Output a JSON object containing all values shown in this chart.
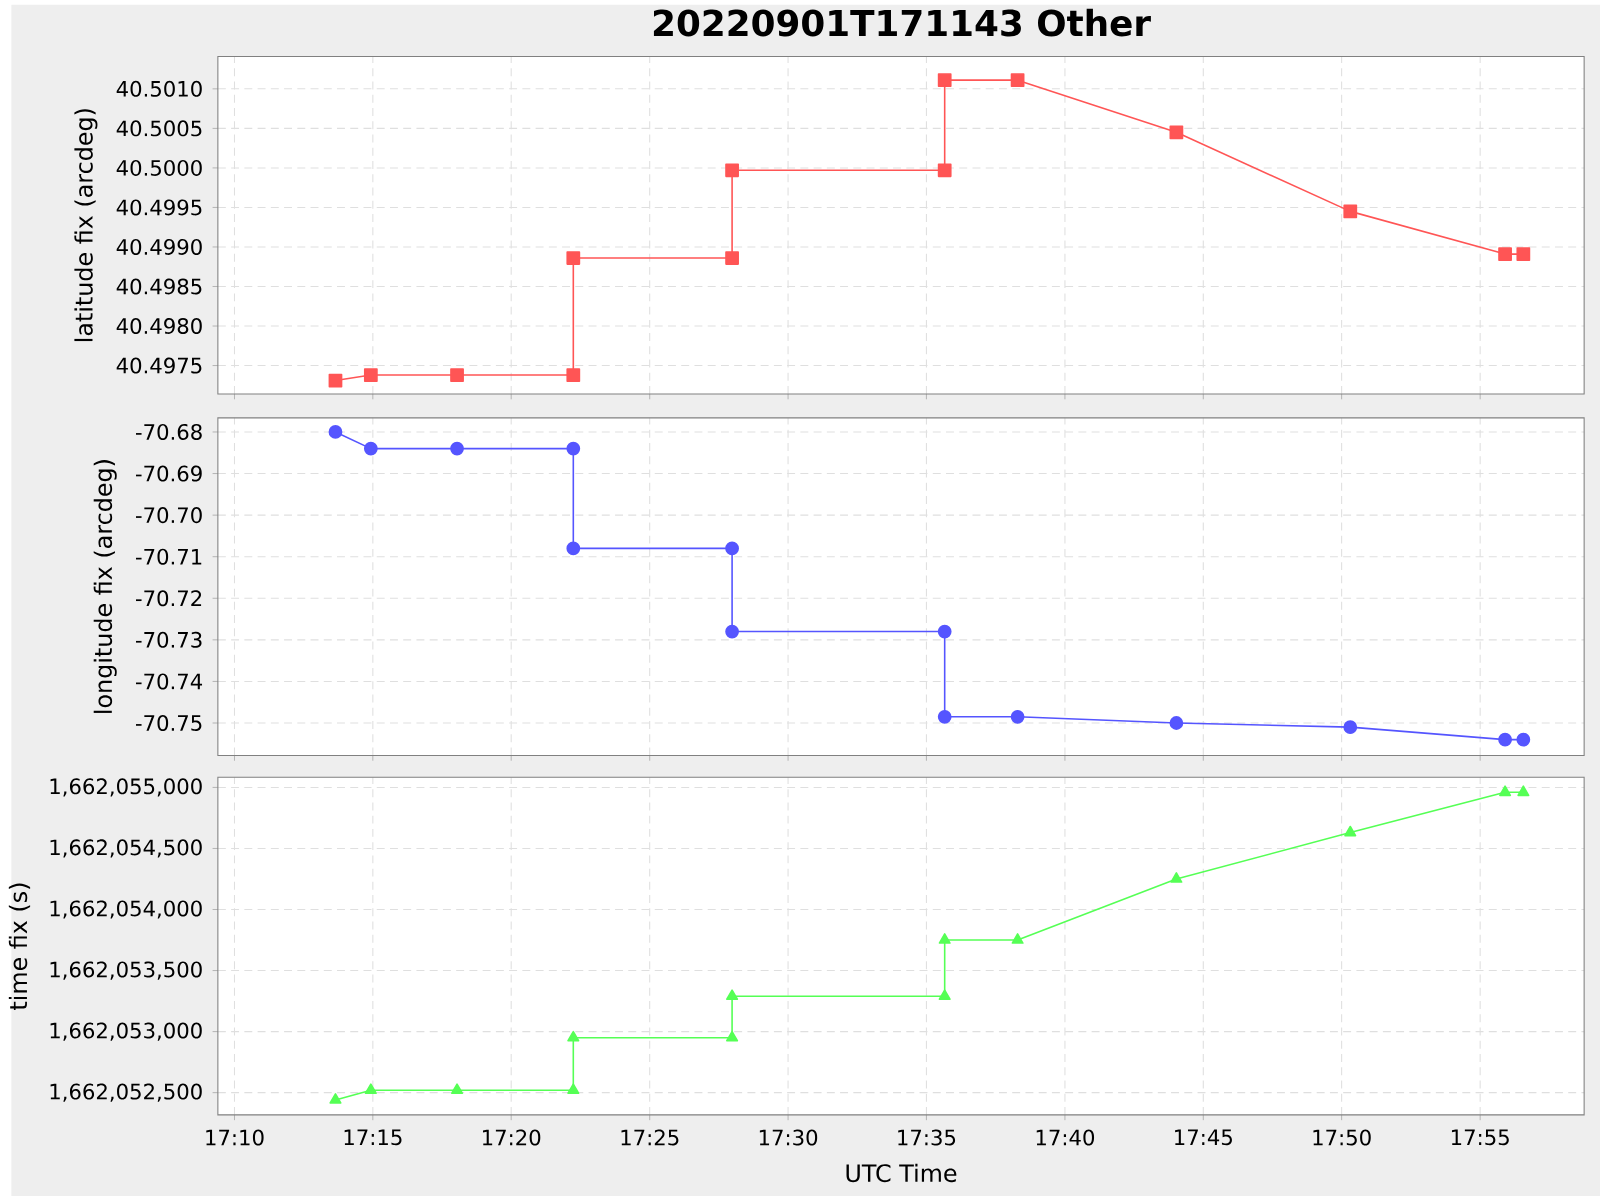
{
  "chart_data": [
    {
      "type": "line",
      "title": "20220901T171143 Other",
      "ylabel": "latitude fix (arcdeg)",
      "color": "#ff5555",
      "marker": "square",
      "line_style": "solid",
      "grid": true,
      "tick_labels": "y",
      "x": [
        17.2275,
        17.2488,
        17.3007,
        17.3707,
        17.3707,
        17.4663,
        17.4663,
        17.5943,
        17.5943,
        17.6382,
        17.7338,
        17.8385,
        17.9317,
        17.9427
      ],
      "values": [
        40.49731,
        40.49738,
        40.49738,
        40.49738,
        40.49886,
        40.49886,
        40.49997,
        40.49997,
        40.50111,
        40.50111,
        40.50045,
        40.49945,
        40.49891,
        40.49891
      ],
      "xlim": [
        17.1567,
        17.9793
      ],
      "xticks": [
        {
          "value": 17.1667,
          "label": null
        },
        {
          "value": 17.25,
          "label": null
        },
        {
          "value": 17.3333,
          "label": null
        },
        {
          "value": 17.4167,
          "label": null
        },
        {
          "value": 17.5,
          "label": null
        },
        {
          "value": 17.5833,
          "label": null
        },
        {
          "value": 17.6667,
          "label": null
        },
        {
          "value": 17.75,
          "label": null
        },
        {
          "value": 17.8333,
          "label": null
        },
        {
          "value": 17.9167,
          "label": null
        }
      ],
      "ylim": [
        40.49714,
        40.50141
      ],
      "yticks": [
        {
          "value": 40.4975,
          "label": "40.4975"
        },
        {
          "value": 40.498,
          "label": "40.4980"
        },
        {
          "value": 40.4985,
          "label": "40.4985"
        },
        {
          "value": 40.499,
          "label": "40.4990"
        },
        {
          "value": 40.4995,
          "label": "40.4995"
        },
        {
          "value": 40.5,
          "label": "40.5000"
        },
        {
          "value": 40.5005,
          "label": "40.5005"
        },
        {
          "value": 40.501,
          "label": "40.5010"
        }
      ]
    },
    {
      "type": "line",
      "ylabel": "longitude fix (arcdeg)",
      "color": "#5555ff",
      "marker": "circle",
      "line_style": "solid",
      "grid": true,
      "tick_labels": "y",
      "x": [
        17.2275,
        17.2488,
        17.3007,
        17.3707,
        17.3707,
        17.4663,
        17.4663,
        17.5943,
        17.5943,
        17.6382,
        17.7338,
        17.8385,
        17.9317,
        17.9427
      ],
      "values": [
        -70.68,
        -70.684,
        -70.684,
        -70.684,
        -70.708,
        -70.708,
        -70.728,
        -70.728,
        -70.7485,
        -70.7485,
        -70.75,
        -70.751,
        -70.754,
        -70.754
      ],
      "xlim": [
        17.1567,
        17.9793
      ],
      "xticks": [
        {
          "value": 17.1667,
          "label": null
        },
        {
          "value": 17.25,
          "label": null
        },
        {
          "value": 17.3333,
          "label": null
        },
        {
          "value": 17.4167,
          "label": null
        },
        {
          "value": 17.5,
          "label": null
        },
        {
          "value": 17.5833,
          "label": null
        },
        {
          "value": 17.6667,
          "label": null
        },
        {
          "value": 17.75,
          "label": null
        },
        {
          "value": 17.8333,
          "label": null
        },
        {
          "value": 17.9167,
          "label": null
        }
      ],
      "ylim": [
        -70.7578,
        -70.6766
      ],
      "yticks": [
        -70.75,
        -70.74,
        -70.73,
        -70.72,
        -70.71,
        {
          "value": -70.7,
          "label": "-70.70"
        },
        -70.69,
        -70.68
      ]
    },
    {
      "type": "line",
      "ylabel": "time fix (s)",
      "xlabel": "UTC Time",
      "color": "#55ff55",
      "marker": "triangle",
      "line_style": "solid",
      "grid": true,
      "x": [
        17.2275,
        17.2488,
        17.3007,
        17.3707,
        17.3707,
        17.4663,
        17.4663,
        17.5943,
        17.5943,
        17.6382,
        17.7338,
        17.8385,
        17.9317,
        17.9427
      ],
      "values": [
        1662052440,
        1662052520,
        1662052520,
        1662052520,
        1662052950,
        1662052950,
        1662053290,
        1662053290,
        1662053750,
        1662053750,
        1662054250,
        1662054630,
        1662054960,
        1662054960
      ],
      "xlim": [
        17.1567,
        17.9793
      ],
      "xticks": [
        {
          "value": 17.1667,
          "label": "17:10"
        },
        {
          "value": 17.25,
          "label": "17:15"
        },
        {
          "value": 17.3333,
          "label": "17:20"
        },
        {
          "value": 17.4167,
          "label": "17:25"
        },
        {
          "value": 17.5,
          "label": "17:30"
        },
        {
          "value": 17.5833,
          "label": "17:35"
        },
        {
          "value": 17.6667,
          "label": "17:40"
        },
        {
          "value": 17.75,
          "label": "17:45"
        },
        {
          "value": 17.8333,
          "label": "17:50"
        },
        {
          "value": 17.9167,
          "label": "17:55"
        }
      ],
      "ylim": [
        1662052318,
        1662055083
      ],
      "yticks": [
        {
          "value": 1662052500,
          "label": "1,662,052,500"
        },
        {
          "value": 1662053000,
          "label": "1,662,053,000"
        },
        {
          "value": 1662053500,
          "label": "1,662,053,500"
        },
        {
          "value": 1662054000,
          "label": "1,662,054,000"
        },
        {
          "value": 1662054500,
          "label": "1,662,054,500"
        },
        {
          "value": 1662055000,
          "label": "1,662,055,000"
        }
      ]
    }
  ]
}
